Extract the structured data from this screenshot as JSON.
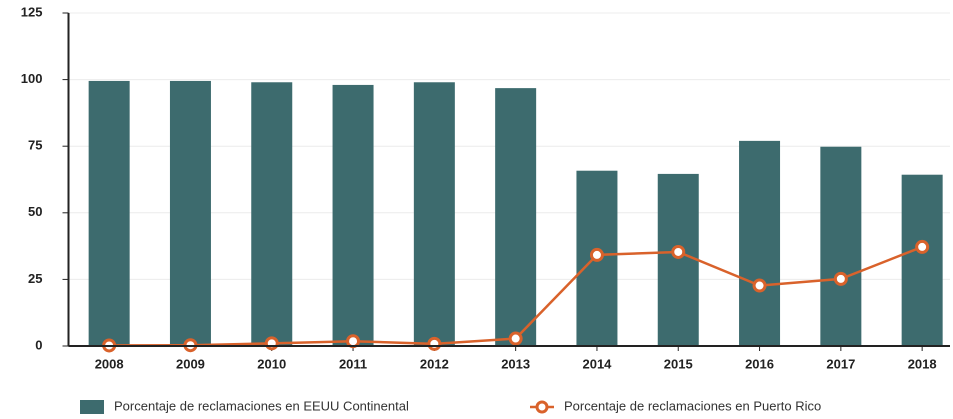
{
  "chart_data": {
    "type": "bar",
    "categories": [
      "2008",
      "2009",
      "2010",
      "2011",
      "2012",
      "2013",
      "2014",
      "2015",
      "2016",
      "2017",
      "2018"
    ],
    "series": [
      {
        "name": "Porcentaje de reclamaciones en EEUU Continental",
        "type": "bar",
        "color": "#3d6b6e",
        "values": [
          99.5,
          99.5,
          99,
          98,
          99,
          96.8,
          65.8,
          64.6,
          77,
          74.8,
          64.3
        ]
      },
      {
        "name": "Porcentaje de reclamaciones en Puerto Rico",
        "type": "line",
        "color": "#d9622b",
        "values": [
          0.2,
          0.3,
          1,
          1.8,
          0.8,
          2.8,
          34.2,
          35.3,
          22.7,
          25.2,
          37.2
        ]
      }
    ],
    "ylim": [
      0,
      125
    ],
    "yticks": [
      0,
      25,
      50,
      75,
      100,
      125
    ],
    "grid": true,
    "legend": "bottom"
  }
}
